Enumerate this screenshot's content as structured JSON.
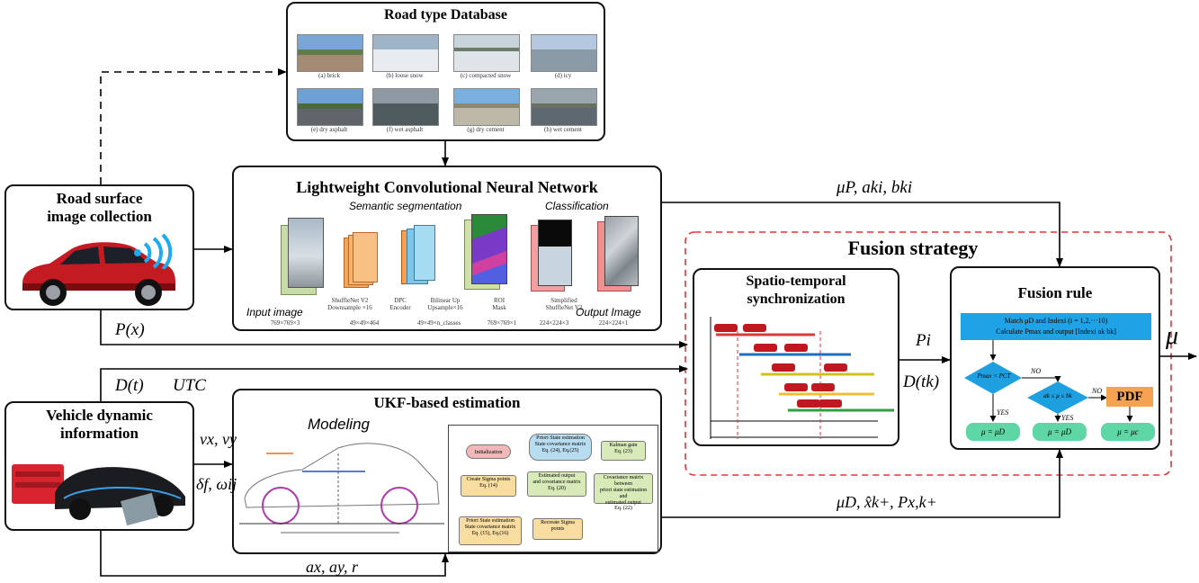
{
  "road_db": {
    "title": "Road type Database",
    "images": [
      {
        "caption": "(a) brick"
      },
      {
        "caption": "(b) loose snow"
      },
      {
        "caption": "(c) compacted snow"
      },
      {
        "caption": "(d) icy"
      },
      {
        "caption": "(e) dry asphalt"
      },
      {
        "caption": "(f) wet asphalt"
      },
      {
        "caption": "(g) dry cement"
      },
      {
        "caption": "(h) wet cement"
      }
    ]
  },
  "lcnn": {
    "title": "Lightweight Convolutional Neural Network",
    "semantic_label": "Semantic segmentation",
    "class_label": "Classification",
    "input_label": "Input image",
    "output_label": "Output Image",
    "layers": [
      {
        "name": "ShuffleNet V2\nDownsample ×16",
        "dims": "49×49×464"
      },
      {
        "name": "DPC\nEncoder",
        "dims": "49×49×n_classes"
      },
      {
        "name": "Bilinear Up\nUpsample×16",
        "dims": "769×769×1"
      },
      {
        "name": "ROI\nMask",
        "dims": "224×224×3"
      },
      {
        "name": "Simplified\nShuffleNet V2",
        "dims": "224×224×1"
      }
    ],
    "input_dims": "769×769×3"
  },
  "road_collect": {
    "title_line1": "Road surface",
    "title_line2": "image collection"
  },
  "vehicle_info": {
    "title_line1": "Vehicle dynamic",
    "title_line2": "information"
  },
  "fusion": {
    "title": "Fusion strategy",
    "sync_title_line1": "Spatio-temporal",
    "sync_title_line2": "synchronization",
    "rule_title": "Fusion rule",
    "rule_header_line1": "Match μD and Indexi (i = 1,2,···10)",
    "rule_header_line2": "Calculate Pmax and output [Indexi ak bk]",
    "cond1": "Pmax < PCT",
    "cond2": "ak ≤ μ ≤ bk",
    "no1": "NO",
    "no2": "NO",
    "yes1": "YES",
    "yes2": "YES",
    "pdf": "PDF",
    "out1": "μ = μD",
    "out2": "μ = μD",
    "out3": "μ = μc"
  },
  "ukf": {
    "title": "UKF-based estimation",
    "modeling": "Modeling",
    "blocks": {
      "init": "Initialization",
      "sigma": "Create Sigma points\nEq. (14)",
      "prior": "Priori State estimation\nState covariance matrix\nEq. (15), Eq.(16)",
      "recreate": "Recreate Sigma\npoints",
      "estout": "Estimated output\nand covariance matrix\nEq. (20)",
      "cov": "Covariance matrix between\npriori state estimation and\nestimated output\nEq. (22)",
      "kalman": "Kalman gain\nEq. (23)",
      "post": "Priori State estimation\nState covariance matrix\nEq. (24), Eq.(25)"
    }
  },
  "signals": {
    "mu_p": "μP, aki, bki",
    "p_x": "P(x)",
    "d_t": "D(t)",
    "utc": "UTC",
    "vx_vy": "vx, vy",
    "delta_omega": "δf, ωij",
    "ax_ay_r": "ax, ay, r",
    "mu_d_out": "μD, x̂k+, Px,k+",
    "p_i": "Pi",
    "d_tk": "D(tk)",
    "mu": "μ"
  },
  "colors": {
    "red_dash": "#e8323c",
    "blue_header": "#1fa3e6",
    "diamond": "#1e9fe0",
    "green_out": "#5fd6a6",
    "pdf_orange": "#f5a350"
  }
}
